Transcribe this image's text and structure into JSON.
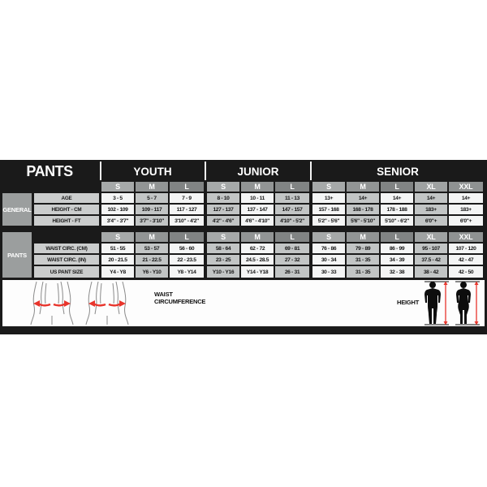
{
  "chart_data": {
    "type": "table",
    "title": "PANTS",
    "groups": [
      {
        "label": "YOUTH",
        "sizes": [
          "S",
          "M",
          "L"
        ]
      },
      {
        "label": "JUNIOR",
        "sizes": [
          "S",
          "M",
          "L"
        ]
      },
      {
        "label": "SENIOR",
        "sizes": [
          "S",
          "M",
          "L",
          "XL",
          "XXL"
        ]
      }
    ],
    "sections": [
      {
        "label": "GENERAL",
        "rows": [
          {
            "label": "AGE",
            "values": [
              "3 - 5",
              "5 - 7",
              "7 - 9",
              "8 - 10",
              "10 - 11",
              "11 - 13",
              "13+",
              "14+",
              "14+",
              "14+",
              "14+"
            ]
          },
          {
            "label": "HEIGHT - CM",
            "values": [
              "102 - 109",
              "109 - 117",
              "117 - 127",
              "127 - 137",
              "137 - 147",
              "147 - 157",
              "157 - 168",
              "168 - 178",
              "178 - 188",
              "183+",
              "183+"
            ]
          },
          {
            "label": "HEIGHT - FT",
            "values": [
              "3'4\" - 3'7\"",
              "3'7\" - 3'10\"",
              "3'10\" - 4'2\"",
              "4'2\" - 4'6\"",
              "4'6\" - 4'10\"",
              "4'10\" - 5'2\"",
              "5'2\" - 5'6\"",
              "5'6\" - 5'10\"",
              "5'10\" - 6'2\"",
              "6'0\"+",
              "6'0\"+"
            ]
          }
        ]
      },
      {
        "label": "PANTS",
        "rows": [
          {
            "label": "WAIST CIRC. (CM)",
            "values": [
              "51 - 55",
              "53 - 57",
              "56 - 60",
              "58 - 64",
              "62 - 72",
              "69 - 81",
              "76 - 86",
              "79 - 89",
              "86 - 99",
              "95 - 107",
              "107 - 120"
            ]
          },
          {
            "label": "WAIST CIRC. (IN)",
            "values": [
              "20 - 21.5",
              "21 - 22.5",
              "22 - 23.5",
              "23 - 25",
              "24.5 - 28.5",
              "27 - 32",
              "30 - 34",
              "31 - 35",
              "34 - 39",
              "37.5 - 42",
              "42 - 47"
            ]
          },
          {
            "label": "US PANT SIZE",
            "values": [
              "Y4 - Y8",
              "Y6 - Y10",
              "Y8 - Y14",
              "Y10 - Y16",
              "Y14 - Y18",
              "26 - 31",
              "30 - 33",
              "31 - 35",
              "32 - 38",
              "38 - 42",
              "42 - 50"
            ]
          }
        ]
      }
    ],
    "legend": {
      "waist_label": "WAIST\nCIRCUMFERENCE",
      "height_label": "HEIGHT"
    }
  },
  "colors": {
    "chart_background": "#1a1a1a",
    "accent_red": "#e8352c",
    "cell_white": "#f4f5f5",
    "cell_gray": "#c2c5c5",
    "row_label_bg": "#cbcdcd",
    "section_label_bg": "#9b9e9e",
    "header_S": "#a6a9a9",
    "header_M": "#929595",
    "header_L": "#818484",
    "header_XL": "#9fa2a2",
    "header_XXL": "#8f9292",
    "separator_white": "#f2f2f2",
    "text_light": "#ffffff",
    "text_dark": "#161616"
  }
}
